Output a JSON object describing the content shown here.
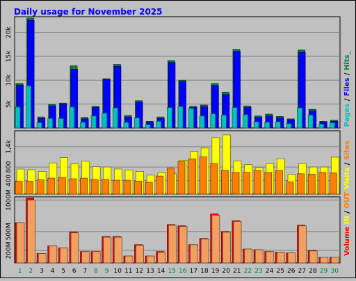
{
  "title": "Daily usage for November 2025",
  "colors": {
    "background": "#c0c0c0",
    "title": "#0000ff",
    "pages": "#00c0c0",
    "files": "#0000ff",
    "hits": "#008040",
    "visits": "#ffff00",
    "sites": "#ff8000",
    "kbytes": "#ff0000",
    "weekend_day": "#008040",
    "weekday": "#000000"
  },
  "side_labels": {
    "top": [
      {
        "text": "Pages",
        "color": "#00c0c0"
      },
      {
        "text": " / ",
        "color": "#000000"
      },
      {
        "text": "Files",
        "color": "#0000ff"
      },
      {
        "text": " / ",
        "color": "#000000"
      },
      {
        "text": "Hits_",
        "color": "#008040"
      }
    ],
    "middle": [
      {
        "text": "Visits",
        "color": "#ffff00"
      },
      {
        "text": " / ",
        "color": "#000000"
      },
      {
        "text": "Sites",
        "color": "#ff8000"
      }
    ],
    "bottom": [
      {
        "text": "Volume",
        "color": "#ff0000"
      },
      {
        "text": "  IN",
        "color": "#ffff00"
      },
      {
        "text": " / ",
        "color": "#000000"
      },
      {
        "text": "OUT",
        "color": "#ff8000"
      }
    ]
  },
  "chart_data": [
    {
      "type": "bar",
      "panel": "hits",
      "categories": [
        "1",
        "2",
        "3",
        "4",
        "5",
        "6",
        "7",
        "8",
        "9",
        "10",
        "11",
        "12",
        "13",
        "14",
        "15",
        "16",
        "17",
        "18",
        "19",
        "20",
        "21",
        "22",
        "23",
        "24",
        "25",
        "26",
        "27",
        "28",
        "29",
        "30"
      ],
      "weekend_days": [
        "1",
        "2",
        "8",
        "9",
        "15",
        "16",
        "22",
        "23",
        "29",
        "30"
      ],
      "y_ticks": [
        "5k",
        "10k",
        "15k",
        "20k"
      ],
      "ylim": [
        0,
        23000
      ],
      "series": [
        {
          "name": "Hits",
          "values": [
            9300,
            23000,
            2300,
            4900,
            5200,
            13000,
            2200,
            4500,
            10300,
            13300,
            2600,
            5700,
            1400,
            2300,
            14100,
            10000,
            4500,
            4800,
            9300,
            7500,
            16400,
            4600,
            2500,
            2900,
            2400,
            1900,
            16300,
            3900,
            1400,
            1600
          ]
        },
        {
          "name": "Files",
          "values": [
            9000,
            22500,
            2000,
            4600,
            5000,
            12300,
            1900,
            4300,
            10100,
            12900,
            2300,
            5400,
            1200,
            2000,
            13700,
            9700,
            4300,
            4500,
            8900,
            7000,
            16000,
            4300,
            2200,
            2500,
            2100,
            1700,
            15800,
            3600,
            1200,
            1400
          ]
        },
        {
          "name": "Pages",
          "values": [
            4400,
            8800,
            1100,
            2000,
            2000,
            4400,
            1200,
            2500,
            3100,
            4200,
            1200,
            2100,
            700,
            1400,
            4300,
            4500,
            4100,
            2500,
            3000,
            2700,
            4300,
            2800,
            1300,
            1200,
            1300,
            900,
            4200,
            2700,
            800,
            1100
          ]
        }
      ]
    },
    {
      "type": "bar",
      "panel": "visits",
      "categories": [
        "1",
        "2",
        "3",
        "4",
        "5",
        "6",
        "7",
        "8",
        "9",
        "10",
        "11",
        "12",
        "13",
        "14",
        "15",
        "16",
        "17",
        "18",
        "19",
        "20",
        "21",
        "22",
        "23",
        "24",
        "25",
        "26",
        "27",
        "28",
        "29",
        "30"
      ],
      "y_ticks": [
        "400",
        "800",
        "1,4k"
      ],
      "ylim": [
        0,
        1830
      ],
      "series": [
        {
          "name": "Visits",
          "values": [
            740,
            720,
            670,
            920,
            1080,
            890,
            970,
            810,
            800,
            740,
            710,
            670,
            560,
            630,
            600,
            1000,
            1260,
            1360,
            1670,
            1750,
            980,
            870,
            780,
            900,
            1040,
            580,
            900,
            800,
            800,
            1090
          ]
        },
        {
          "name": "Sites",
          "values": [
            380,
            380,
            420,
            470,
            490,
            450,
            470,
            430,
            430,
            410,
            410,
            380,
            350,
            530,
            770,
            960,
            1040,
            1100,
            900,
            700,
            640,
            640,
            700,
            640,
            700,
            360,
            600,
            590,
            640,
            620
          ]
        }
      ]
    },
    {
      "type": "bar",
      "panel": "volume",
      "categories": [
        "1",
        "2",
        "3",
        "4",
        "5",
        "6",
        "7",
        "8",
        "9",
        "10",
        "11",
        "12",
        "13",
        "14",
        "15",
        "16",
        "17",
        "18",
        "19",
        "20",
        "21",
        "22",
        "23",
        "24",
        "25",
        "26",
        "27",
        "28",
        "29",
        "30"
      ],
      "y_ticks": [
        "200M",
        "500M",
        "1000M"
      ],
      "ylim": [
        0,
        1030
      ],
      "series": [
        {
          "name": "IN",
          "values": [
            640,
            1030,
            150,
            270,
            240,
            490,
            180,
            180,
            420,
            420,
            110,
            290,
            110,
            180,
            610,
            590,
            290,
            390,
            780,
            500,
            670,
            220,
            210,
            180,
            170,
            160,
            600,
            200,
            90,
            90
          ]
        },
        {
          "name": "OUT",
          "values": [
            640,
            1000,
            150,
            270,
            240,
            480,
            180,
            180,
            410,
            410,
            110,
            280,
            110,
            170,
            600,
            580,
            290,
            380,
            760,
            490,
            660,
            220,
            210,
            180,
            170,
            160,
            590,
            190,
            90,
            90
          ]
        }
      ]
    }
  ]
}
